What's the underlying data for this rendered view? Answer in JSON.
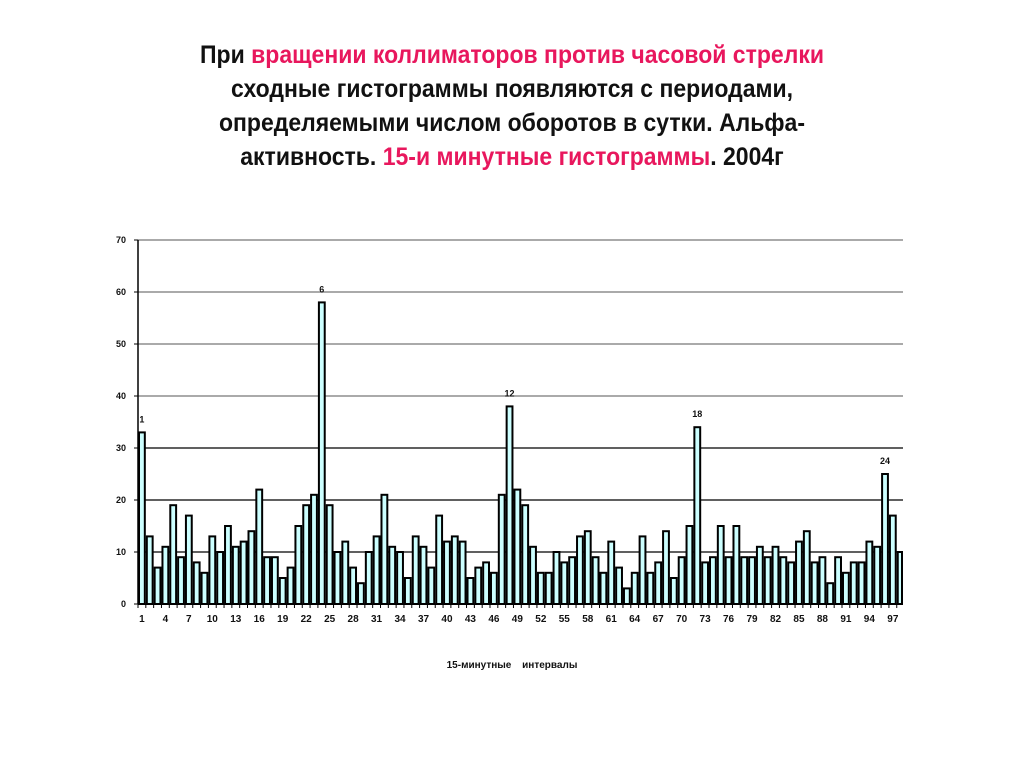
{
  "title": {
    "line1": [
      {
        "text": "При ",
        "hl": false
      },
      {
        "text": "вращении коллиматоров против часовой стрелки",
        "hl": true
      }
    ],
    "line2": [
      {
        "text": "сходные гистограммы появляются с периодами,",
        "hl": false
      }
    ],
    "line3": [
      {
        "text": "определяемыми числом оборотов в сутки. Альфа-",
        "hl": false
      }
    ],
    "line4": [
      {
        "text": "активность. ",
        "hl": false
      },
      {
        "text": "15-и минутные гистограммы",
        "hl": true
      },
      {
        "text": ". 2004г",
        "hl": false
      }
    ]
  },
  "colors": {
    "highlight": "#e8175d",
    "bar_fill": "#ccffff",
    "bar_stroke": "#000000",
    "grid": "#333333"
  },
  "chart_data": {
    "type": "bar",
    "title": "При вращении коллиматоров против часовой стрелки сходные гистограммы появляются с периодами, определяемыми числом оборотов в сутки. Альфа-активность. 15-и минутные гистограммы. 2004г",
    "xlabel": "15-минутные интервалы",
    "ylabel": "",
    "ylim": [
      0,
      70
    ],
    "yticks": [
      0,
      10,
      20,
      30,
      40,
      50,
      60,
      70
    ],
    "xtick_labels": [
      "1",
      "4",
      "7",
      "10",
      "13",
      "16",
      "19",
      "22",
      "25",
      "28",
      "31",
      "34",
      "37",
      "40",
      "43",
      "46",
      "49",
      "52",
      "55",
      "58",
      "61",
      "64",
      "67",
      "70",
      "73",
      "76",
      "79",
      "82",
      "85",
      "88",
      "91",
      "94",
      "97"
    ],
    "grid": true,
    "legend": null,
    "annotations": [
      {
        "text": "1",
        "x": 1
      },
      {
        "text": "6",
        "x": 24
      },
      {
        "text": "12",
        "x": 48
      },
      {
        "text": "18",
        "x": 72
      },
      {
        "text": "24",
        "x": 96
      }
    ],
    "x": [
      1,
      2,
      3,
      4,
      5,
      6,
      7,
      8,
      9,
      10,
      11,
      12,
      13,
      14,
      15,
      16,
      17,
      18,
      19,
      20,
      21,
      22,
      23,
      24,
      25,
      26,
      27,
      28,
      29,
      30,
      31,
      32,
      33,
      34,
      35,
      36,
      37,
      38,
      39,
      40,
      41,
      42,
      43,
      44,
      45,
      46,
      47,
      48,
      49,
      50,
      51,
      52,
      53,
      54,
      55,
      56,
      57,
      58,
      59,
      60,
      61,
      62,
      63,
      64,
      65,
      66,
      67,
      68,
      69,
      70,
      71,
      72,
      73,
      74,
      75,
      76,
      77,
      78,
      79,
      80,
      81,
      82,
      83,
      84,
      85,
      86,
      87,
      88,
      89,
      90,
      91,
      92,
      93,
      94,
      95,
      96,
      97,
      98
    ],
    "values": [
      33,
      13,
      7,
      11,
      19,
      9,
      17,
      8,
      6,
      13,
      10,
      15,
      11,
      12,
      14,
      22,
      9,
      9,
      5,
      7,
      15,
      19,
      21,
      58,
      19,
      10,
      12,
      7,
      4,
      10,
      13,
      21,
      11,
      10,
      5,
      13,
      11,
      7,
      17,
      12,
      13,
      12,
      5,
      7,
      8,
      6,
      21,
      38,
      22,
      19,
      11,
      6,
      6,
      10,
      8,
      9,
      13,
      14,
      9,
      6,
      12,
      7,
      3,
      6,
      13,
      6,
      8,
      14,
      5,
      9,
      15,
      34,
      8,
      9,
      15,
      9,
      15,
      9,
      9,
      11,
      9,
      11,
      9,
      8,
      12,
      14,
      8,
      9,
      4,
      9,
      6,
      8,
      8,
      12,
      11,
      25,
      17,
      10
    ]
  }
}
